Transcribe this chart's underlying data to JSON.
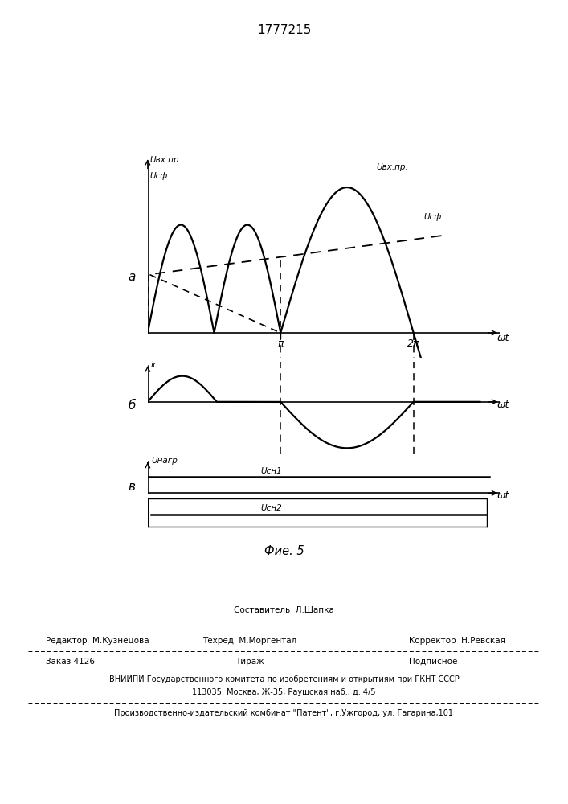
{
  "title": "1777215",
  "fig_label": "Фие. 5",
  "panel_a_label": "а",
  "panel_b_label": "б",
  "panel_v_label": "в",
  "label_Uvxpr": "Uвх.пр.",
  "label_Ucf": "Uсф.",
  "label_ic": "iс",
  "label_Unagr": "Uнагр",
  "label_Ucn1": "Uсн1",
  "label_Ucn2": "Uсн2",
  "label_wt": "ωt",
  "label_pi": "π",
  "label_2pi": "2π",
  "bg_color": "#ffffff",
  "line_color": "#000000",
  "footer_sestavitel": "Составитель  Л.Шапка",
  "footer_redaktor": "Редактор  М.Кузнецова",
  "footer_tehred": "Техред  М.Моргентал",
  "footer_korrektor": "Корректор  Н.Ревская",
  "footer_zakaz": "Заказ 4126",
  "footer_tirazh": "Тираж",
  "footer_podpisnoe": "Подписное",
  "footer_vniip1": "ВНИИПИ Государственного комитета по изобретениям и открытиям при ГКНТ СССР",
  "footer_vniip2": "113035, Москва, Ж-35, Раушская наб., д. 4/5",
  "footer_patent": "Производственно-издательский комбинат \"Патент\", г.Ужгород, ул. Гагарина,101"
}
